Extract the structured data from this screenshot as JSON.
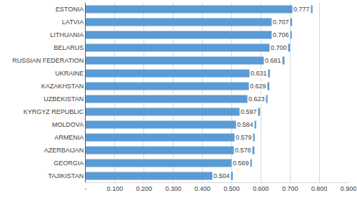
{
  "chart_data": {
    "type": "bar",
    "orientation": "horizontal",
    "categories": [
      "ESTONIA",
      "LATVIA",
      "LITHUANIA",
      "BELARUS",
      "RUSSIAN FEDERATION",
      "UKRAINE",
      "KAZAKHSTAN",
      "UZBEKISTAN",
      "KYRGYZ REPUBLIC",
      "MOLDOVA",
      "ARMENIA",
      "AZERBAIJAN",
      "GEORGIA",
      "TAJIKISTAN"
    ],
    "values": [
      0.777,
      0.707,
      0.706,
      0.7,
      0.681,
      0.631,
      0.629,
      0.623,
      0.597,
      0.584,
      0.579,
      0.578,
      0.569,
      0.504
    ],
    "value_labels": [
      "0.777",
      "0.707",
      "0.706",
      "0.700",
      "0.681",
      "0.631",
      "0.629",
      "0.623",
      "0.597",
      "0.584",
      "0.579",
      "0.578",
      "0.569",
      "0.504"
    ],
    "data_labels": true,
    "color": "#5b9bd5",
    "xlim": [
      0,
      0.9
    ],
    "xticks": [
      {
        "value": 0,
        "label": "-"
      },
      {
        "value": 0.1,
        "label": "0.100"
      },
      {
        "value": 0.2,
        "label": "0.200"
      },
      {
        "value": 0.3,
        "label": "0.300"
      },
      {
        "value": 0.4,
        "label": "0.400"
      },
      {
        "value": 0.5,
        "label": "0.500"
      },
      {
        "value": 0.6,
        "label": "0.600"
      },
      {
        "value": 0.7,
        "label": "0.700"
      },
      {
        "value": 0.8,
        "label": "0.800"
      },
      {
        "value": 0.9,
        "label": "0.900"
      }
    ],
    "grid": true
  }
}
